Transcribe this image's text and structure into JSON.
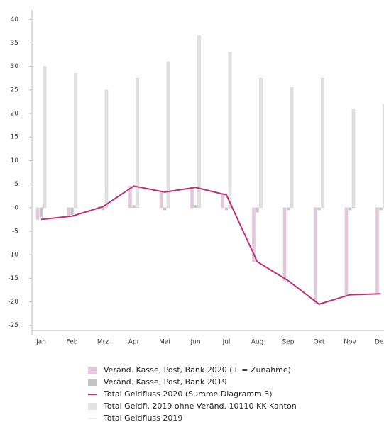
{
  "chart_data": {
    "type": "bar",
    "categories": [
      "Jan",
      "Feb",
      "Mrz",
      "Apr",
      "Mai",
      "Jun",
      "Jul",
      "Aug",
      "Sep",
      "Okt",
      "Nov",
      "Dez"
    ],
    "series": [
      {
        "name": "Veränd. Kasse, Post, Bank 2020 (+ = Zunahme)",
        "type": "bar",
        "color": "#e6c6de",
        "values": [
          -2.5,
          -1.8,
          0.2,
          4.6,
          3.3,
          4.3,
          2.7,
          -11.5,
          -15.5,
          -20.5,
          -18.5,
          -18.3
        ]
      },
      {
        "name": "Veränd. Kasse, Post, Bank 2019",
        "type": "bar",
        "color": "#c4c4c4",
        "values": [
          -2,
          -1.5,
          -0.5,
          0.5,
          -0.5,
          0.5,
          -0.5,
          -1,
          -0.5,
          -0.5,
          -0.5,
          -0.5
        ]
      },
      {
        "name": "Total Geldfluss 2020 (Summe Diagramm 3)",
        "type": "line",
        "color": "#c0307a",
        "values": [
          -2.5,
          -1.8,
          0.2,
          4.6,
          3.3,
          4.3,
          2.7,
          -11.5,
          -15.5,
          -20.5,
          -18.5,
          -18.3
        ]
      },
      {
        "name": "Total Geldfl. 2019 ohne Veränd. 10110 KK Kanton",
        "type": "bar",
        "color": "#e2e2e2",
        "values": [
          30,
          28.5,
          25,
          27.5,
          31,
          36.5,
          33,
          27.5,
          25.5,
          27.5,
          21,
          22
        ]
      },
      {
        "name": "Total Geldfluss 2019",
        "type": "line",
        "color": "#eeeeee",
        "values": [
          null,
          null,
          null,
          null,
          null,
          null,
          null,
          null,
          null,
          null,
          null,
          null
        ]
      }
    ],
    "ylim": [
      -27,
      42
    ],
    "yticks": [
      -25,
      -20,
      -15,
      -10,
      -5,
      0,
      5,
      10,
      15,
      20,
      25,
      30,
      35,
      40
    ],
    "grid": false
  }
}
